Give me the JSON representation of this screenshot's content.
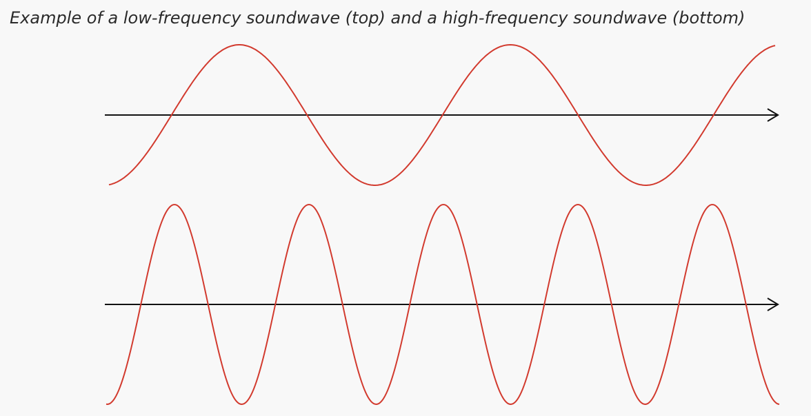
{
  "caption": "Example of a low-frequency soundwave (top) and a high-frequency soundwave (bottom)",
  "colors": {
    "background": "#f8f8f8",
    "wave": "#d23a2e",
    "axis": "#111111",
    "caption": "#2a2a2a"
  },
  "waves": [
    {
      "name": "low-frequency-wave",
      "cycles_shown": 2.5
    },
    {
      "name": "high-frequency-wave",
      "cycles_shown": 5.2
    }
  ]
}
